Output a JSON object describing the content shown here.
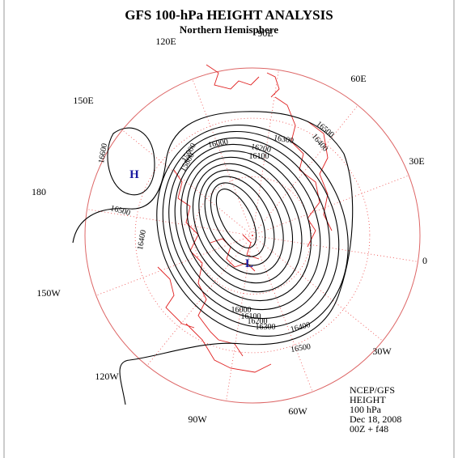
{
  "header": {
    "title": "GFS 100-hPa HEIGHT ANALYSIS",
    "subtitle": "Northern Hemisphere"
  },
  "longitude_labels": [
    "90E",
    "60E",
    "30E",
    "0",
    "30W",
    "60W",
    "90W",
    "120W",
    "150W",
    "180",
    "150E",
    "120E"
  ],
  "centers": [
    "H",
    "L"
  ],
  "contour_labels": [
    "16600",
    "16500",
    "16400",
    "16500",
    "16400",
    "16300",
    "16200",
    "16100",
    "16000",
    "15900",
    "15800",
    "16000",
    "16100",
    "16200",
    "16300",
    "16400",
    "16500"
  ],
  "info": [
    "NCEP/GFS",
    "HEIGHT",
    "100 hPa",
    "Dec 18, 2008",
    "00Z + f48"
  ]
}
